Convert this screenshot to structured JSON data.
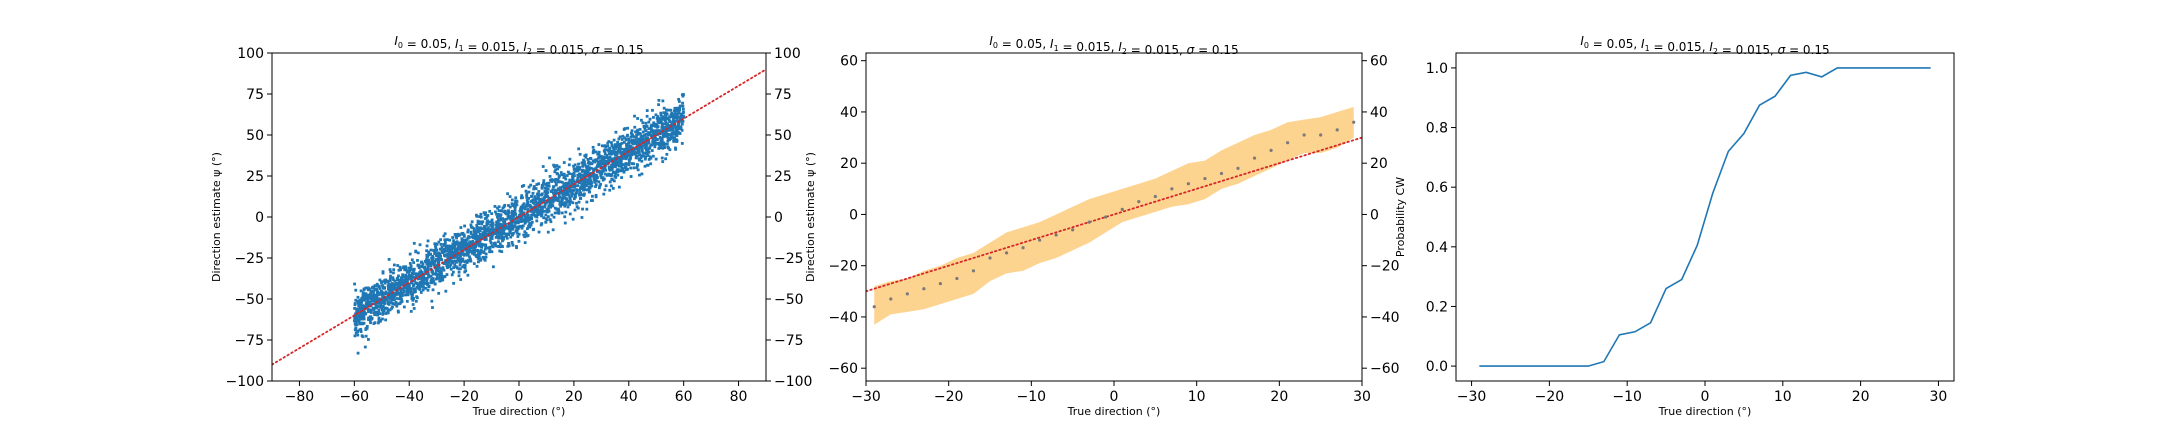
{
  "chart_data": [
    {
      "type": "scatter",
      "title": "I_0 = 0.05, I_1 = 0.015, I_2 = 0.015, σ = 0.15",
      "title_parts": [
        {
          "t": "I",
          "i": true
        },
        {
          "t": "0",
          "sub": true
        },
        {
          "t": " = 0.05, "
        },
        {
          "t": "I",
          "i": true
        },
        {
          "t": "1",
          "sub": true
        },
        {
          "t": " = 0.015, "
        },
        {
          "t": "I",
          "i": true
        },
        {
          "t": "2",
          "sub": true
        },
        {
          "t": " = 0.015, "
        },
        {
          "t": "σ",
          "i": true
        },
        {
          "t": " = 0.15"
        }
      ],
      "xlabel": "True direction (°)",
      "ylabel": "Direction estimate ψ (°)",
      "xlim": [
        -90,
        90
      ],
      "ylim": [
        -100,
        100
      ],
      "xticks": [
        -80,
        -60,
        -40,
        -20,
        0,
        20,
        40,
        60,
        80
      ],
      "yticks": [
        -100,
        -75,
        -50,
        -25,
        0,
        25,
        50,
        75,
        100
      ],
      "right_yticks": [
        -100,
        -75,
        -50,
        -25,
        0,
        25,
        50,
        75,
        100
      ],
      "scatter_x_range": [
        -60,
        60
      ],
      "scatter_mean_slope": 1.0,
      "scatter_spread_sd": 7,
      "scatter_point_count": 3000,
      "reference_line": {
        "slope": 1,
        "intercept": 0,
        "style": "dotted",
        "color": "#d62728"
      },
      "point_color": "#1f77b4",
      "grid": false
    },
    {
      "type": "line",
      "title": "I_0 = 0.05, I_1 = 0.015, I_2 = 0.015, σ = 0.15",
      "title_parts": [
        {
          "t": "I",
          "i": true
        },
        {
          "t": "0",
          "sub": true
        },
        {
          "t": " = 0.05, "
        },
        {
          "t": "I",
          "i": true
        },
        {
          "t": "1",
          "sub": true
        },
        {
          "t": " = 0.015, "
        },
        {
          "t": "I",
          "i": true
        },
        {
          "t": "2",
          "sub": true
        },
        {
          "t": " = 0.015, "
        },
        {
          "t": "σ",
          "i": true
        },
        {
          "t": " = 0.15"
        }
      ],
      "xlabel": "True direction (°)",
      "ylabel": "Direction estimate ψ (°)",
      "xlim": [
        -30,
        30
      ],
      "ylim": [
        -65,
        63
      ],
      "xticks": [
        -30,
        -20,
        -10,
        0,
        10,
        20,
        30
      ],
      "yticks": [
        -60,
        -40,
        -20,
        0,
        20,
        40,
        60
      ],
      "right_yticks": [
        -60,
        -40,
        -20,
        0,
        20,
        40,
        60
      ],
      "x": [
        -29,
        -27,
        -25,
        -23,
        -21,
        -19,
        -17,
        -15,
        -13,
        -11,
        -9,
        -7,
        -5,
        -3,
        -1,
        1,
        3,
        5,
        7,
        9,
        11,
        13,
        15,
        17,
        19,
        21,
        23,
        25,
        27,
        29
      ],
      "mean": [
        -36,
        -33,
        -31,
        -29,
        -27,
        -25,
        -22,
        -17,
        -15,
        -13,
        -10,
        -8,
        -6,
        -3,
        -1,
        2,
        5,
        7,
        10,
        12,
        14,
        16,
        18,
        22,
        25,
        28,
        31,
        31,
        33,
        36
      ],
      "band_lower": [
        -43,
        -39,
        -38,
        -37,
        -35,
        -33,
        -31,
        -26,
        -23,
        -22,
        -19,
        -17,
        -14,
        -11,
        -7,
        -3,
        -1,
        1,
        3,
        4,
        6,
        10,
        12,
        15,
        18,
        21,
        24,
        24,
        26,
        30
      ],
      "band_upper": [
        -28,
        -26,
        -25,
        -22,
        -20,
        -17,
        -15,
        -11,
        -7,
        -5,
        -3,
        0,
        3,
        6,
        8,
        10,
        12,
        14,
        17,
        20,
        21,
        25,
        28,
        31,
        33,
        36,
        37,
        38,
        40,
        42
      ],
      "reference_line": {
        "slope": 1,
        "intercept": 0,
        "style": "dotted",
        "color": "#d62728"
      },
      "band_color": "#fdd18a",
      "point_color": "#7a7a7a",
      "grid": false
    },
    {
      "type": "line",
      "title": "I_0 = 0.05, I_1 = 0.015, I_2 = 0.015, σ = 0.15",
      "title_parts": [
        {
          "t": "I",
          "i": true
        },
        {
          "t": "0",
          "sub": true
        },
        {
          "t": " = 0.05, "
        },
        {
          "t": "I",
          "i": true
        },
        {
          "t": "1",
          "sub": true
        },
        {
          "t": " = 0.015, "
        },
        {
          "t": "I",
          "i": true
        },
        {
          "t": "2",
          "sub": true
        },
        {
          "t": " = 0.015, "
        },
        {
          "t": "σ",
          "i": true
        },
        {
          "t": " = 0.15"
        }
      ],
      "xlabel": "True direction (°)",
      "ylabel": "Probability CW",
      "xlim": [
        -32,
        32
      ],
      "ylim": [
        -0.05,
        1.05
      ],
      "xticks": [
        -30,
        -20,
        -10,
        0,
        10,
        20,
        30
      ],
      "yticks": [
        0.0,
        0.2,
        0.4,
        0.6,
        0.8,
        1.0
      ],
      "ytick_labels": [
        "0.0",
        "0.2",
        "0.4",
        "0.6",
        "0.8",
        "1.0"
      ],
      "series": [
        {
          "x": [
            -29,
            -27,
            -25,
            -23,
            -21,
            -19,
            -17,
            -15,
            -13,
            -11,
            -9,
            -7,
            -5,
            -3,
            -1,
            1,
            3,
            5,
            7,
            9,
            11,
            13,
            15,
            17,
            19,
            21,
            23,
            25,
            27,
            29
          ],
          "values": [
            0,
            0,
            0,
            0,
            0,
            0,
            0,
            0,
            0.015,
            0.105,
            0.115,
            0.145,
            0.26,
            0.29,
            0.405,
            0.58,
            0.72,
            0.78,
            0.875,
            0.905,
            0.975,
            0.985,
            0.97,
            1.0,
            1.0,
            1.0,
            1.0,
            1.0,
            1.0,
            1.0
          ]
        }
      ],
      "line_color": "#1f77b4",
      "grid": false
    }
  ]
}
